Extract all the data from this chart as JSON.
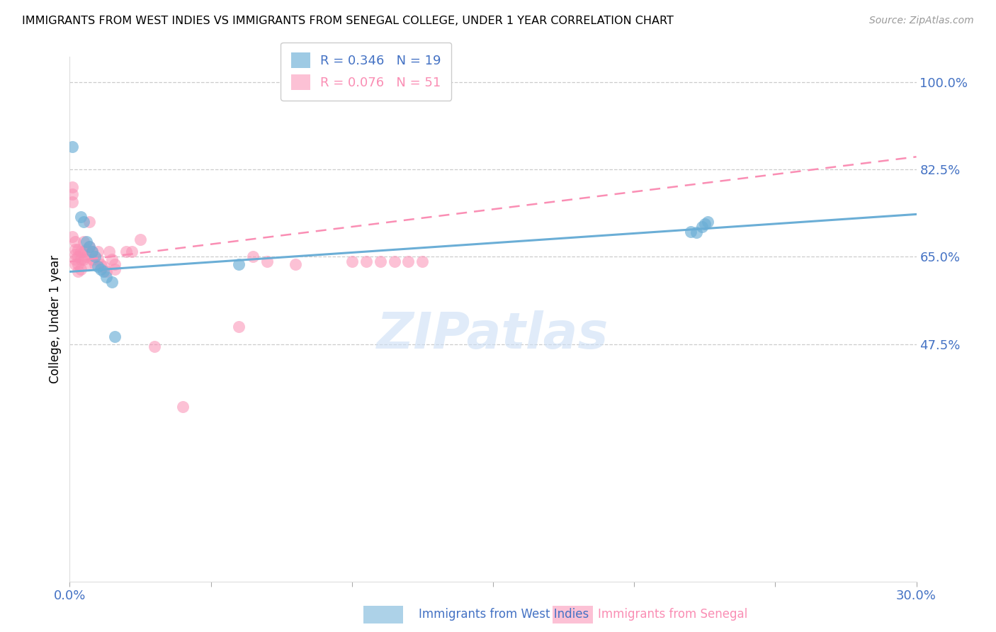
{
  "title": "IMMIGRANTS FROM WEST INDIES VS IMMIGRANTS FROM SENEGAL COLLEGE, UNDER 1 YEAR CORRELATION CHART",
  "source": "Source: ZipAtlas.com",
  "ylabel": "College, Under 1 year",
  "xmin": 0.0,
  "xmax": 0.3,
  "ymin": 0.0,
  "ymax": 1.05,
  "yticks": [
    0.475,
    0.65,
    0.825,
    1.0
  ],
  "ytick_labels": [
    "47.5%",
    "65.0%",
    "82.5%",
    "100.0%"
  ],
  "xticks": [
    0.0,
    0.05,
    0.1,
    0.15,
    0.2,
    0.25,
    0.3
  ],
  "xtick_labels": [
    "0.0%",
    "",
    "",
    "",
    "",
    "",
    "30.0%"
  ],
  "series1_name": "Immigrants from West Indies",
  "series1_color": "#6baed6",
  "series1_R": 0.346,
  "series1_N": 19,
  "series2_name": "Immigrants from Senegal",
  "series2_color": "#fa8eb4",
  "series2_R": 0.076,
  "series2_N": 51,
  "watermark": "ZIPatlas",
  "axis_color": "#4472c4",
  "grid_color": "#cccccc",
  "series1_x": [
    0.001,
    0.004,
    0.005,
    0.006,
    0.007,
    0.008,
    0.009,
    0.01,
    0.011,
    0.012,
    0.013,
    0.015,
    0.016,
    0.06,
    0.22,
    0.222,
    0.224,
    0.225,
    0.226
  ],
  "series1_y": [
    0.87,
    0.73,
    0.72,
    0.68,
    0.67,
    0.66,
    0.65,
    0.63,
    0.625,
    0.62,
    0.61,
    0.6,
    0.49,
    0.635,
    0.7,
    0.698,
    0.71,
    0.715,
    0.72
  ],
  "series2_x": [
    0.001,
    0.001,
    0.001,
    0.001,
    0.002,
    0.002,
    0.002,
    0.002,
    0.002,
    0.003,
    0.003,
    0.003,
    0.003,
    0.004,
    0.004,
    0.004,
    0.005,
    0.005,
    0.005,
    0.006,
    0.006,
    0.006,
    0.007,
    0.007,
    0.008,
    0.008,
    0.009,
    0.01,
    0.01,
    0.011,
    0.012,
    0.013,
    0.014,
    0.015,
    0.016,
    0.016,
    0.02,
    0.022,
    0.025,
    0.03,
    0.04,
    0.06,
    0.065,
    0.07,
    0.08,
    0.1,
    0.105,
    0.11,
    0.115,
    0.12,
    0.125
  ],
  "series2_y": [
    0.79,
    0.775,
    0.76,
    0.69,
    0.68,
    0.665,
    0.655,
    0.645,
    0.635,
    0.665,
    0.65,
    0.635,
    0.62,
    0.66,
    0.645,
    0.625,
    0.68,
    0.66,
    0.645,
    0.665,
    0.65,
    0.635,
    0.72,
    0.67,
    0.66,
    0.645,
    0.635,
    0.66,
    0.645,
    0.635,
    0.63,
    0.62,
    0.66,
    0.645,
    0.635,
    0.625,
    0.66,
    0.66,
    0.685,
    0.47,
    0.35,
    0.51,
    0.65,
    0.64,
    0.635,
    0.64,
    0.64,
    0.64,
    0.64,
    0.64,
    0.64
  ],
  "line1_x0": 0.0,
  "line1_x1": 0.3,
  "line1_y0": 0.62,
  "line1_y1": 0.735,
  "line2_x0": 0.0,
  "line2_x1": 0.3,
  "line2_y0": 0.64,
  "line2_y1": 0.85
}
